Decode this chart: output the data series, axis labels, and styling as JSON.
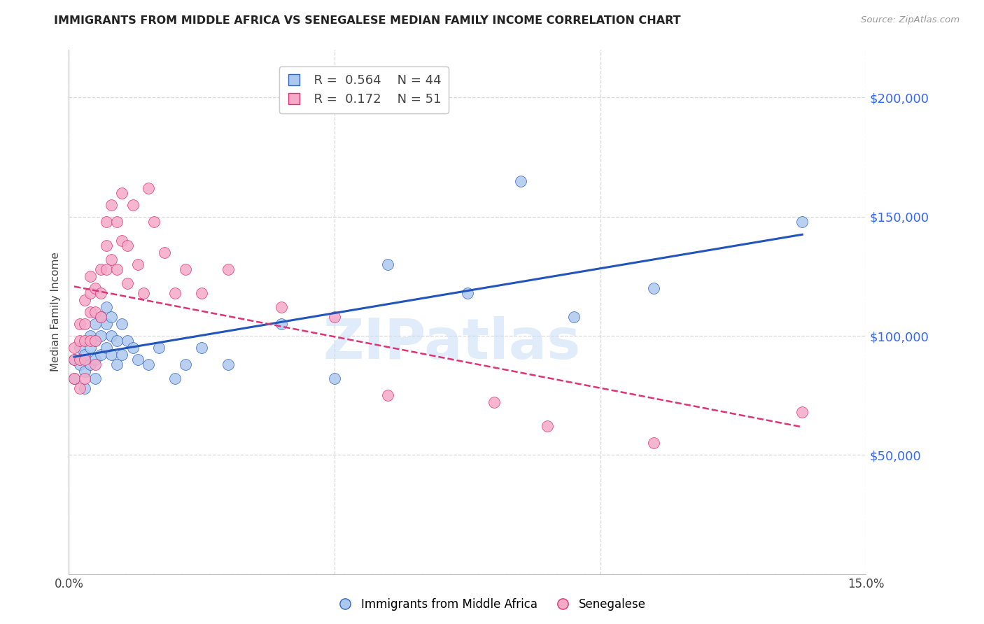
{
  "title": "IMMIGRANTS FROM MIDDLE AFRICA VS SENEGALESE MEDIAN FAMILY INCOME CORRELATION CHART",
  "source": "Source: ZipAtlas.com",
  "ylabel": "Median Family Income",
  "xlim": [
    0.0,
    0.15
  ],
  "ylim": [
    0,
    220000
  ],
  "yticks": [
    0,
    50000,
    100000,
    150000,
    200000
  ],
  "ytick_labels": [
    "",
    "$50,000",
    "$100,000",
    "$150,000",
    "$200,000"
  ],
  "xticks": [
    0.0,
    0.05,
    0.1,
    0.15
  ],
  "xtick_labels": [
    "0.0%",
    "",
    "",
    "15.0%"
  ],
  "background_color": "#ffffff",
  "grid_color": "#d8d8d8",
  "watermark_text": "ZIPatlas",
  "watermark_color": "#c8ddf5",
  "series1_name": "Immigrants from Middle Africa",
  "series1_fill": "#adc8ee",
  "series1_edge": "#3366bb",
  "series1_line": "#2255bb",
  "series1_R": 0.564,
  "series1_N": 44,
  "series2_name": "Senegalese",
  "series2_fill": "#f5aac8",
  "series2_edge": "#dd3377",
  "series2_line": "#dd3377",
  "series2_R": 0.172,
  "series2_N": 51,
  "series1_x": [
    0.001,
    0.001,
    0.002,
    0.002,
    0.003,
    0.003,
    0.003,
    0.004,
    0.004,
    0.004,
    0.005,
    0.005,
    0.005,
    0.005,
    0.006,
    0.006,
    0.006,
    0.007,
    0.007,
    0.007,
    0.008,
    0.008,
    0.008,
    0.009,
    0.009,
    0.01,
    0.01,
    0.011,
    0.012,
    0.013,
    0.015,
    0.017,
    0.02,
    0.022,
    0.025,
    0.03,
    0.04,
    0.05,
    0.06,
    0.075,
    0.085,
    0.095,
    0.11,
    0.138
  ],
  "series1_y": [
    90000,
    82000,
    88000,
    95000,
    92000,
    85000,
    78000,
    100000,
    95000,
    88000,
    105000,
    98000,
    90000,
    82000,
    108000,
    100000,
    92000,
    112000,
    105000,
    95000,
    108000,
    100000,
    92000,
    98000,
    88000,
    105000,
    92000,
    98000,
    95000,
    90000,
    88000,
    95000,
    82000,
    88000,
    95000,
    88000,
    105000,
    82000,
    130000,
    118000,
    165000,
    108000,
    120000,
    148000
  ],
  "series2_x": [
    0.001,
    0.001,
    0.001,
    0.002,
    0.002,
    0.002,
    0.002,
    0.003,
    0.003,
    0.003,
    0.003,
    0.003,
    0.004,
    0.004,
    0.004,
    0.004,
    0.005,
    0.005,
    0.005,
    0.005,
    0.006,
    0.006,
    0.006,
    0.007,
    0.007,
    0.007,
    0.008,
    0.008,
    0.009,
    0.009,
    0.01,
    0.01,
    0.011,
    0.011,
    0.012,
    0.013,
    0.014,
    0.015,
    0.016,
    0.018,
    0.02,
    0.022,
    0.025,
    0.03,
    0.04,
    0.05,
    0.06,
    0.08,
    0.09,
    0.11,
    0.138
  ],
  "series2_y": [
    95000,
    90000,
    82000,
    105000,
    98000,
    90000,
    78000,
    115000,
    105000,
    98000,
    90000,
    82000,
    125000,
    118000,
    110000,
    98000,
    120000,
    110000,
    98000,
    88000,
    128000,
    118000,
    108000,
    148000,
    138000,
    128000,
    155000,
    132000,
    148000,
    128000,
    160000,
    140000,
    138000,
    122000,
    155000,
    130000,
    118000,
    162000,
    148000,
    135000,
    118000,
    128000,
    118000,
    128000,
    112000,
    108000,
    75000,
    72000,
    62000,
    55000,
    68000
  ]
}
